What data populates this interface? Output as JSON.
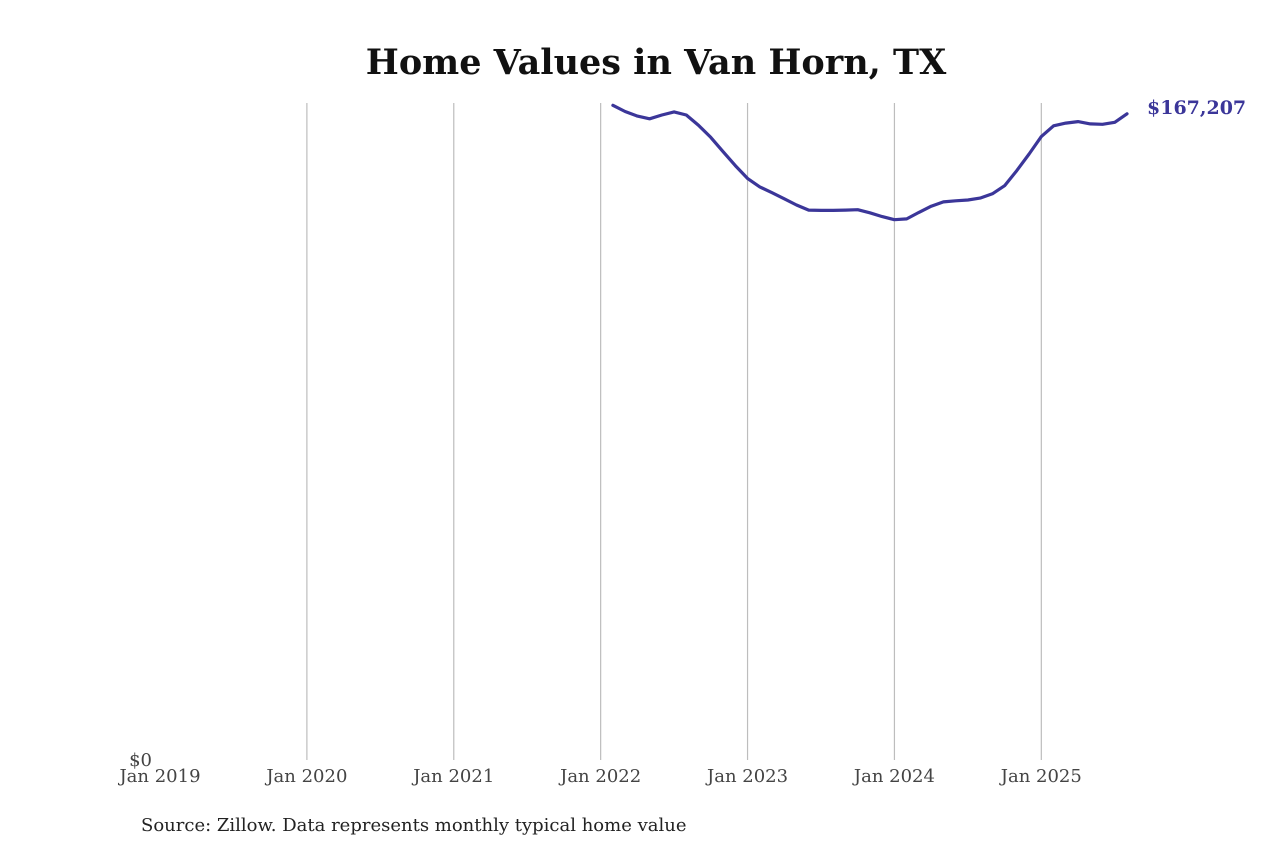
{
  "colors": {
    "series": "#3b3699",
    "grid": "#bdbdbd",
    "text": "#111111"
  },
  "source_note": "Source: Zillow. Data represents monthly typical home value",
  "chart_data": {
    "type": "line",
    "title": "Home Values in Van Horn, TX",
    "xlabel": "",
    "ylabel": "",
    "grid": "vertical",
    "x_ticks": [
      "Jan 2019",
      "Jan 2020",
      "Jan 2021",
      "Jan 2022",
      "Jan 2023",
      "Jan 2024",
      "Jan 2025"
    ],
    "y_ticks": [
      "$0"
    ],
    "xlim": [
      "2019-01",
      "2025-08"
    ],
    "ylim": [
      0,
      170000
    ],
    "end_label": "$167,207",
    "series": [
      {
        "x": [
          "2022-02",
          "2022-03",
          "2022-04",
          "2022-05",
          "2022-06",
          "2022-07",
          "2022-08",
          "2022-09",
          "2022-10",
          "2022-11",
          "2022-12",
          "2023-01",
          "2023-02",
          "2023-03",
          "2023-04",
          "2023-05",
          "2023-06",
          "2023-07",
          "2023-08",
          "2023-09",
          "2023-10",
          "2023-11",
          "2023-12",
          "2024-01",
          "2024-02",
          "2024-03",
          "2024-04",
          "2024-05",
          "2024-06",
          "2024-07",
          "2024-08",
          "2024-09",
          "2024-10",
          "2024-11",
          "2024-12",
          "2025-01",
          "2025-02",
          "2025-03",
          "2025-04",
          "2025-05",
          "2025-06",
          "2025-07",
          "2025-08"
        ],
        "values": [
          169400,
          167800,
          166600,
          165900,
          166900,
          167700,
          166900,
          164200,
          161100,
          157400,
          153800,
          150500,
          148300,
          146800,
          145200,
          143600,
          142300,
          142200,
          142200,
          142300,
          142400,
          141600,
          140600,
          139800,
          140000,
          141700,
          143300,
          144400,
          144700,
          144900,
          145400,
          146500,
          148600,
          152500,
          156800,
          161300,
          164100,
          164800,
          165200,
          164600,
          164500,
          165000,
          167207
        ]
      }
    ]
  }
}
